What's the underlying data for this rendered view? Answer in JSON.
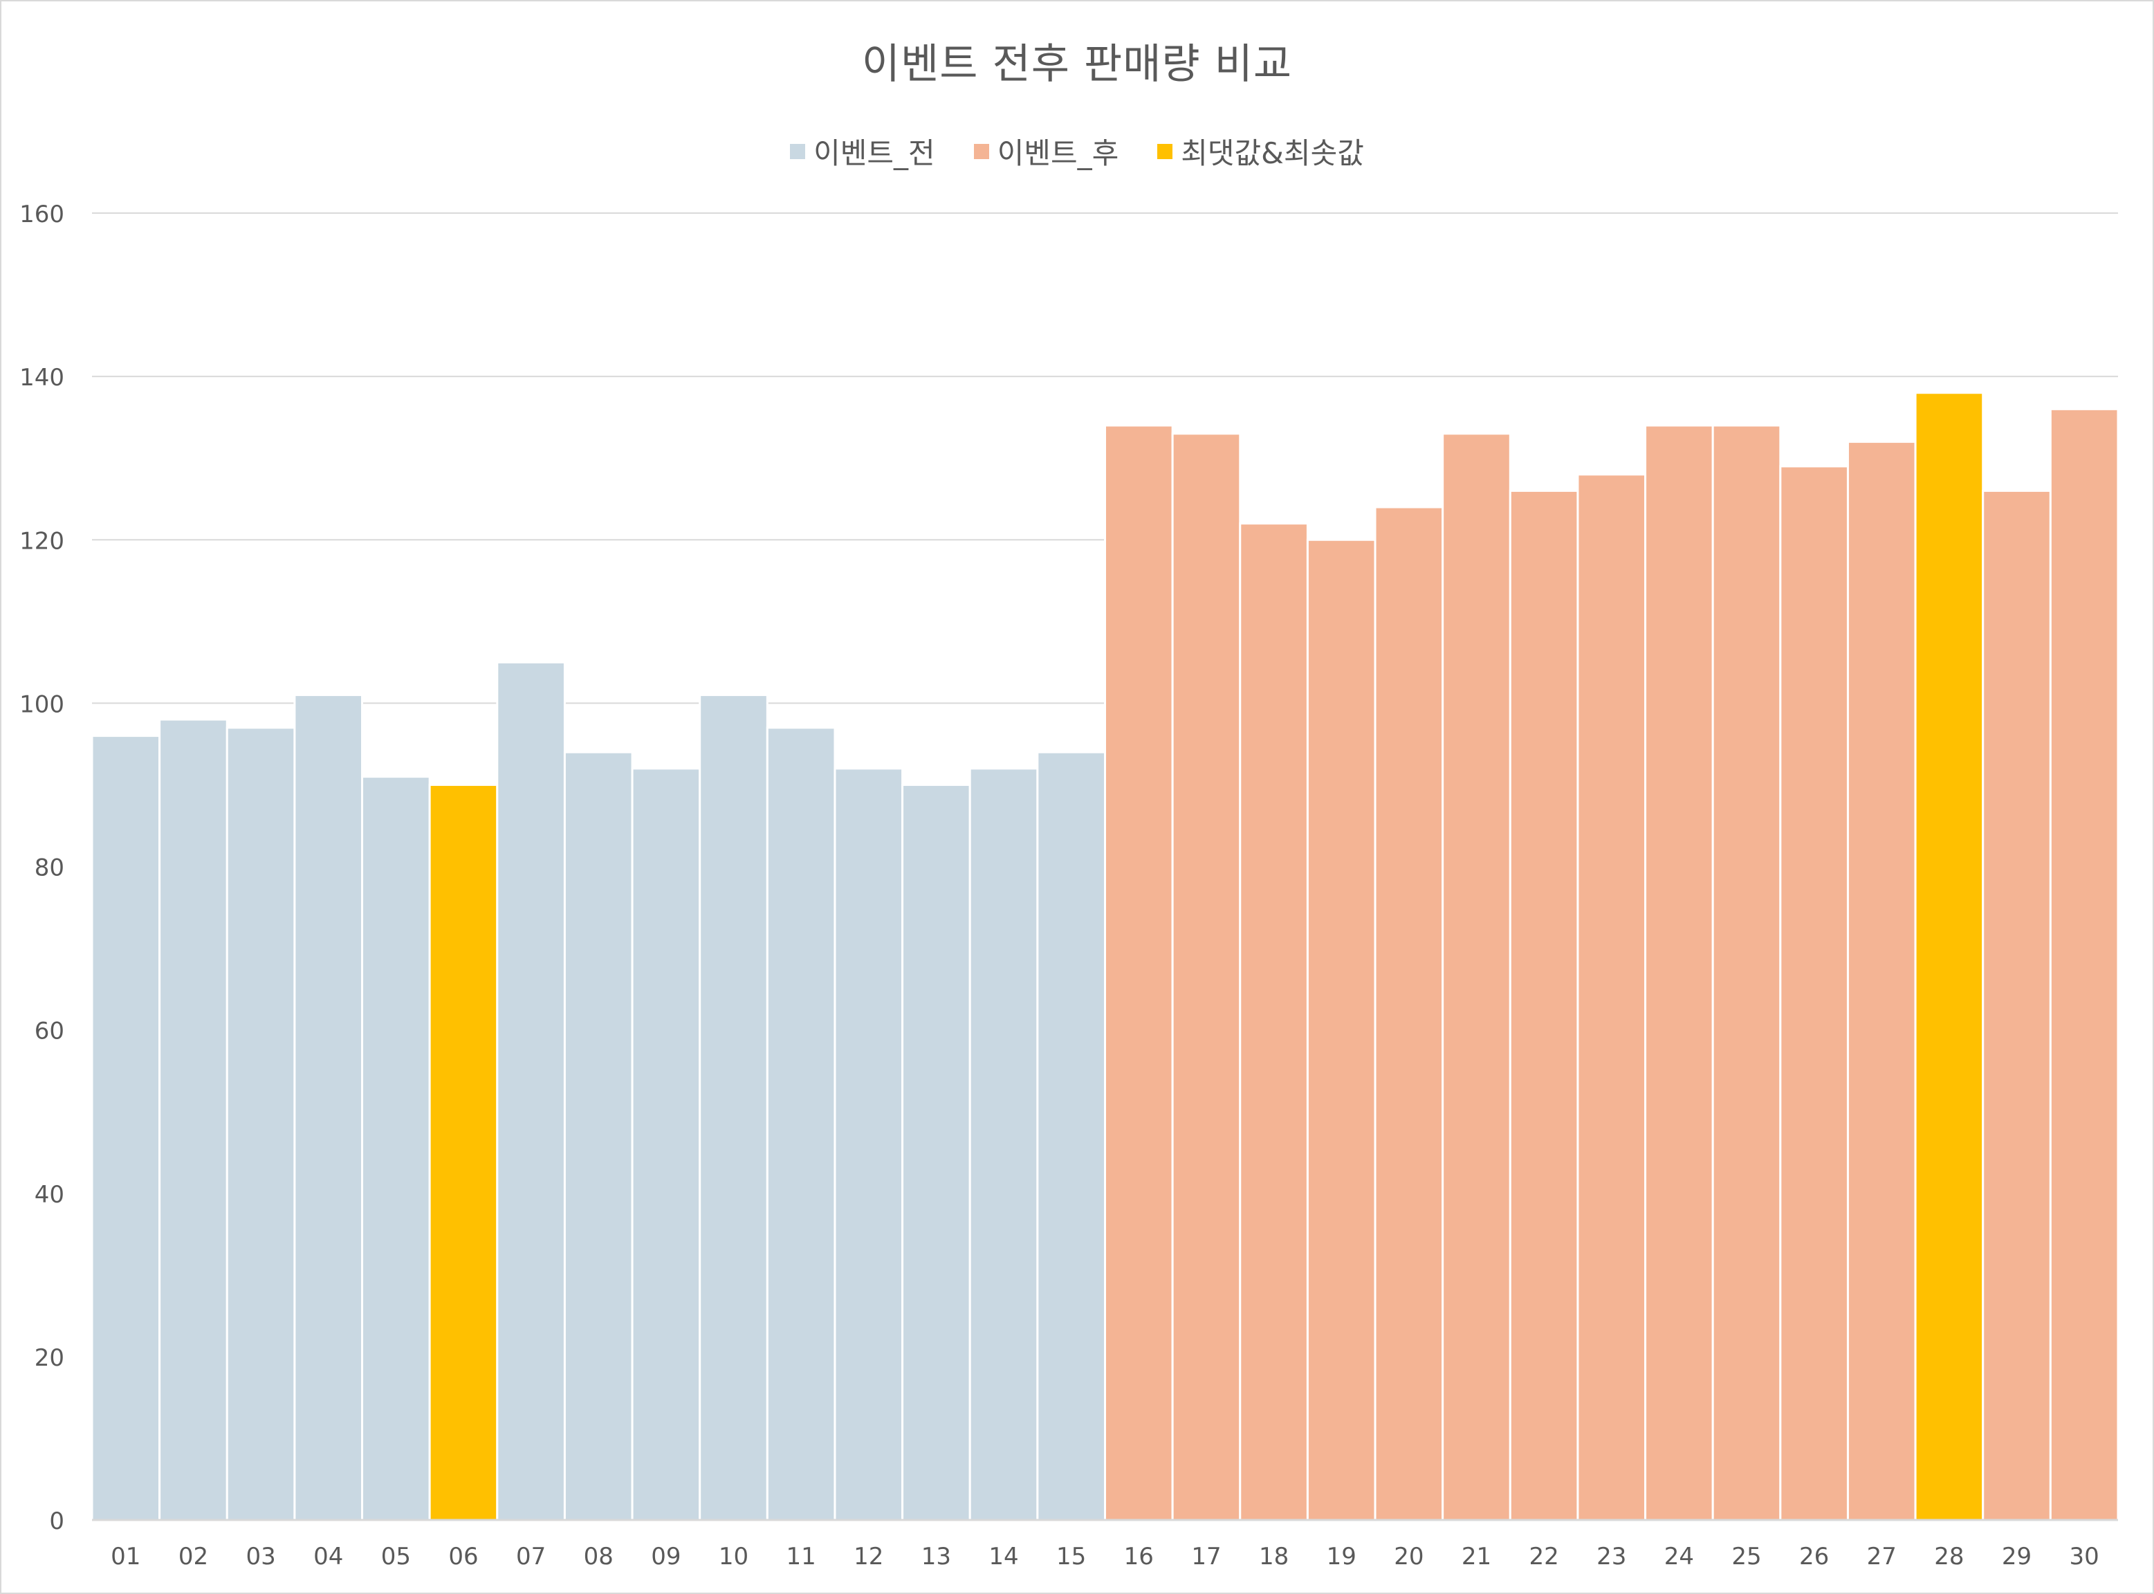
{
  "chart_data": {
    "type": "bar",
    "title": "이벤트 전후 판매량 비교",
    "xlabel": "",
    "ylabel": "",
    "ylim": [
      0,
      160
    ],
    "yticks": [
      0,
      20,
      40,
      60,
      80,
      100,
      120,
      140,
      160
    ],
    "grid": true,
    "legend_position": "top-center",
    "categories": [
      "01",
      "02",
      "03",
      "04",
      "05",
      "06",
      "07",
      "08",
      "09",
      "10",
      "11",
      "12",
      "13",
      "14",
      "15",
      "16",
      "17",
      "18",
      "19",
      "20",
      "21",
      "22",
      "23",
      "24",
      "25",
      "26",
      "27",
      "28",
      "29",
      "30"
    ],
    "series": [
      {
        "name": "이벤트_전",
        "color": "#c9d8e2",
        "values": [
          96,
          98,
          97,
          101,
          91,
          null,
          105,
          94,
          92,
          101,
          97,
          92,
          90,
          92,
          94,
          null,
          null,
          null,
          null,
          null,
          null,
          null,
          null,
          null,
          null,
          null,
          null,
          null,
          null,
          null
        ]
      },
      {
        "name": "이벤트_후",
        "color": "#f4b494",
        "values": [
          null,
          null,
          null,
          null,
          null,
          null,
          null,
          null,
          null,
          null,
          null,
          null,
          null,
          null,
          null,
          134,
          133,
          122,
          120,
          124,
          133,
          126,
          128,
          134,
          134,
          129,
          132,
          null,
          126,
          136
        ]
      },
      {
        "name": "최댓값&최솟값",
        "color": "#ffc000",
        "values": [
          null,
          null,
          null,
          null,
          null,
          90,
          null,
          null,
          null,
          null,
          null,
          null,
          null,
          null,
          null,
          null,
          null,
          null,
          null,
          null,
          null,
          null,
          null,
          null,
          null,
          null,
          null,
          138,
          null,
          null
        ]
      }
    ]
  }
}
